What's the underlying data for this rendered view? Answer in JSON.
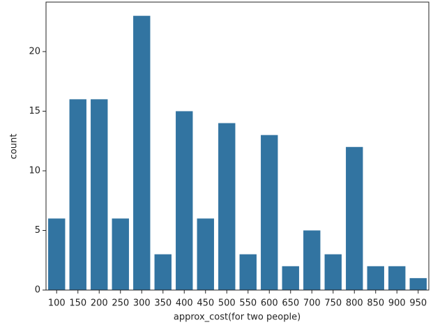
{
  "chart_data": {
    "type": "bar",
    "x_label": "approx_cost(for two people)",
    "y_label": "count",
    "categories": [
      "100",
      "150",
      "200",
      "250",
      "300",
      "350",
      "400",
      "450",
      "500",
      "550",
      "600",
      "650",
      "700",
      "750",
      "800",
      "850",
      "900",
      "950"
    ],
    "values": [
      6,
      16,
      16,
      6,
      23,
      3,
      15,
      6,
      14,
      3,
      13,
      2,
      5,
      3,
      12,
      2,
      2,
      1
    ],
    "color": "#3274a1",
    "ylim": [
      0,
      24.15
    ],
    "yticks": [
      0,
      5,
      10,
      15,
      20
    ],
    "grid": false
  }
}
